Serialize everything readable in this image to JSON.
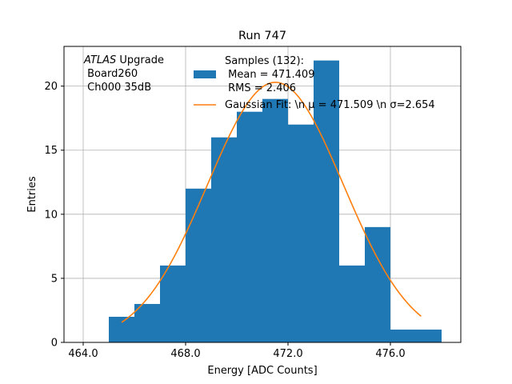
{
  "chart_data": {
    "type": "bar",
    "title": "Run 747",
    "xlabel": "Energy [ADC Counts]",
    "ylabel": "Entries",
    "xlim": [
      63.25,
      78.75
    ],
    "ylim": [
      0,
      23.1
    ],
    "x_ticks": [
      64,
      68,
      72,
      76
    ],
    "x_tick_labels": [
      "464.0",
      "468.0",
      "472.0",
      "476.0"
    ],
    "y_ticks": [
      0,
      5,
      10,
      15,
      20
    ],
    "y_tick_labels": [
      "0",
      "5",
      "10",
      "15",
      "20"
    ],
    "grid": true,
    "annotation": {
      "italic": "ATLAS",
      "line1_rest": " Upgrade",
      "line2": " Board260",
      "line3": " Ch000 35dB"
    },
    "legend_position": "upper-right",
    "series": [
      {
        "kind": "histogram",
        "color": "#1f77b4",
        "legend_lines": [
          "Samples (132):",
          " Mean = 471.409",
          " RMS = 2.406"
        ],
        "bin_edges": [
          465,
          466,
          467,
          468,
          469,
          470,
          471,
          472,
          473,
          474,
          475,
          476,
          477,
          478
        ],
        "counts": [
          2,
          3,
          6,
          12,
          16,
          18,
          19,
          17,
          22,
          6,
          9,
          1,
          1
        ]
      },
      {
        "kind": "line",
        "color": "#ff7f0e",
        "legend_label": "Gaussian Fit: \\n μ = 471.509 \\n σ=2.654",
        "amplitude": 20.3,
        "mu": 471.509,
        "sigma": 2.654,
        "x_range": [
          465.5,
          477.2
        ]
      }
    ]
  }
}
